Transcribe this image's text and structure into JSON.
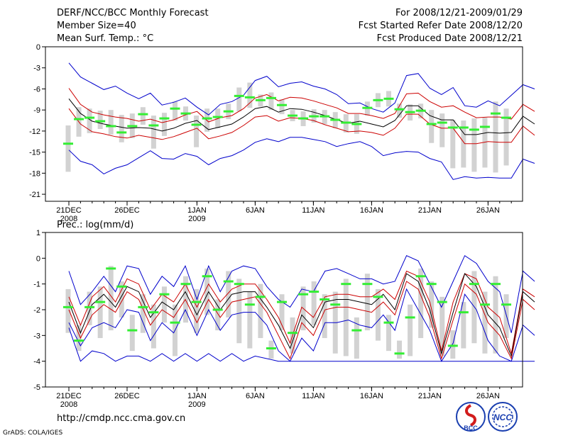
{
  "header": {
    "title": "DERF/NCC/BCC Monthly Forecast",
    "member_size": "Member Size=40",
    "variable": "Mean Surf. Temp.: °C",
    "for_period": "For 2008/12/21-2009/01/29",
    "started": "Fcst Started Refer Date 2008/12/20",
    "produced": "Fcst Produced Date 2008/12/21"
  },
  "footer": {
    "url": "http://cmdp.ncc.cma.gov.cn",
    "grads": "GrADS: COLA/IGES",
    "logo_bcc": "BCC",
    "logo_ncc": "NCC"
  },
  "colors": {
    "envelope": "#0000cc",
    "spread": "#cc0000",
    "mean": "#000000",
    "box": "#d2d2d2",
    "marker": "#33ee33"
  },
  "chart_data": [
    {
      "type": "box-and-line",
      "title": "Mean Surf. Temp.: °C",
      "ylim": [
        0,
        -22
      ],
      "yticks": [
        0,
        -3,
        -6,
        -9,
        -12,
        -15,
        -18,
        -21
      ],
      "day_count": 40,
      "xtick_labels": [
        {
          "day": 0,
          "label": "21DEC",
          "sub": "2008"
        },
        {
          "day": 5,
          "label": "26DEC",
          "sub": ""
        },
        {
          "day": 11,
          "label": "1JAN",
          "sub": "2009"
        },
        {
          "day": 16,
          "label": "6JAN",
          "sub": ""
        },
        {
          "day": 21,
          "label": "11JAN",
          "sub": ""
        },
        {
          "day": 26,
          "label": "16JAN",
          "sub": ""
        },
        {
          "day": 31,
          "label": "21JAN",
          "sub": ""
        },
        {
          "day": 36,
          "label": "26JAN",
          "sub": ""
        }
      ],
      "series": [
        {
          "name": "max",
          "values": [
            -2.3,
            -4.3,
            -5.2,
            -6.1,
            -5.6,
            -6.6,
            -7.4,
            -6.6,
            -8.3,
            -7.9,
            -7.3,
            -8.6,
            -9.7,
            -8.2,
            -7.8,
            -6.9,
            -4.8,
            -4.2,
            -5.7,
            -5.2,
            -5.0,
            -5.6,
            -6.0,
            -6.8,
            -8.1,
            -8.0,
            -8.8,
            -9.3,
            -8.0,
            -4.1,
            -3.8,
            -5.9,
            -6.8,
            -5.8,
            -8.4,
            -8.6,
            -7.7,
            -8.4,
            -6.9,
            -5.4,
            -6.0
          ]
        },
        {
          "name": "upper",
          "values": [
            -5.9,
            -8.2,
            -9.3,
            -9.7,
            -10.0,
            -10.2,
            -10.6,
            -10.3,
            -10.8,
            -10.4,
            -9.7,
            -9.2,
            -10.7,
            -10.1,
            -9.8,
            -8.8,
            -7.3,
            -6.8,
            -7.7,
            -7.2,
            -7.3,
            -7.7,
            -8.2,
            -8.7,
            -9.5,
            -9.5,
            -9.8,
            -10.2,
            -9.5,
            -6.7,
            -6.6,
            -7.8,
            -8.6,
            -8.4,
            -9.3,
            -10.1,
            -10.0,
            -10.0,
            -10.3,
            -8.2,
            -9.2
          ]
        },
        {
          "name": "mean",
          "values": [
            -7.4,
            -9.5,
            -10.6,
            -11.0,
            -11.3,
            -11.6,
            -11.5,
            -11.6,
            -12.0,
            -11.6,
            -10.9,
            -10.5,
            -11.8,
            -11.4,
            -11.0,
            -10.0,
            -8.8,
            -8.5,
            -9.3,
            -8.8,
            -8.9,
            -9.3,
            -9.8,
            -10.4,
            -10.9,
            -10.6,
            -11.0,
            -11.4,
            -10.5,
            -8.4,
            -8.4,
            -9.8,
            -10.4,
            -10.4,
            -12.5,
            -12.5,
            -12.2,
            -12.3,
            -12.2,
            -9.9,
            -11.0
          ]
        },
        {
          "name": "lower",
          "values": [
            -8.8,
            -11.0,
            -12.1,
            -12.4,
            -12.8,
            -13.0,
            -12.6,
            -12.9,
            -13.2,
            -12.8,
            -12.2,
            -11.6,
            -13.1,
            -12.7,
            -12.2,
            -11.2,
            -10.0,
            -9.8,
            -10.6,
            -10.1,
            -10.2,
            -10.5,
            -11.1,
            -11.6,
            -12.1,
            -12.0,
            -12.2,
            -12.6,
            -11.6,
            -9.6,
            -9.6,
            -11.0,
            -11.6,
            -11.6,
            -13.8,
            -13.8,
            -13.5,
            -13.6,
            -13.6,
            -11.3,
            -12.6
          ]
        },
        {
          "name": "min",
          "values": [
            -14.7,
            -16.3,
            -16.8,
            -18.1,
            -17.3,
            -16.8,
            -15.8,
            -14.8,
            -15.9,
            -16.0,
            -15.2,
            -15.6,
            -16.8,
            -15.9,
            -15.5,
            -14.7,
            -13.6,
            -13.1,
            -13.5,
            -12.9,
            -12.9,
            -13.2,
            -13.5,
            -14.2,
            -13.8,
            -13.5,
            -14.2,
            -15.5,
            -15.1,
            -14.9,
            -15.0,
            -15.9,
            -16.4,
            -18.9,
            -18.5,
            -18.7,
            -18.6,
            -18.7,
            -18.7,
            -16.0,
            -16.6
          ]
        }
      ],
      "markers": [
        -13.8,
        -10.3,
        -10.1,
        -10.6,
        -11.3,
        -12.2,
        -11.3,
        -9.6,
        -11.2,
        -10.2,
        -8.8,
        -9.5,
        -11.1,
        -10.2,
        -10.0,
        -9.2,
        -7.0,
        -7.2,
        -7.6,
        -7.3,
        -8.3,
        -9.8,
        -10.2,
        -9.9,
        -9.9,
        -10.4,
        -10.8,
        -11.0,
        -8.7,
        -7.6,
        -7.4,
        -8.9,
        -9.3,
        -9.1,
        -11.0,
        -10.8,
        -11.5,
        -11.5,
        -11.8,
        -11.4,
        -9.5,
        -10.1
      ],
      "boxes": [
        [
          -11.2,
          -17.8
        ],
        [
          -8.6,
          -12.8
        ],
        [
          -8.8,
          -12.3
        ],
        [
          -9.1,
          -11.7
        ],
        [
          -9.0,
          -12.5
        ],
        [
          -9.7,
          -13.6
        ],
        [
          -9.5,
          -13.0
        ],
        [
          -8.6,
          -11.1
        ],
        [
          -9.8,
          -14.5
        ],
        [
          -9.4,
          -12.7
        ],
        [
          -7.8,
          -10.5
        ],
        [
          -8.5,
          -10.5
        ],
        [
          -9.8,
          -14.3
        ],
        [
          -8.8,
          -12.1
        ],
        [
          -8.8,
          -11.6
        ],
        [
          -8.1,
          -10.3
        ],
        [
          -5.8,
          -9.2
        ],
        [
          -5.1,
          -8.7
        ],
        [
          -6.8,
          -8.5
        ],
        [
          -6.5,
          -9.0
        ],
        [
          -7.5,
          -9.6
        ],
        [
          -9.0,
          -10.6
        ],
        [
          -9.2,
          -11.3
        ],
        [
          -8.9,
          -10.8
        ],
        [
          -9.0,
          -11.0
        ],
        [
          -9.3,
          -11.6
        ],
        [
          -9.6,
          -12.2
        ],
        [
          -9.6,
          -12.4
        ],
        [
          -7.8,
          -9.8
        ],
        [
          -6.6,
          -8.6
        ],
        [
          -6.3,
          -8.5
        ],
        [
          -8.1,
          -10.1
        ],
        [
          -8.2,
          -10.5
        ],
        [
          -8.1,
          -10.2
        ],
        [
          -9.0,
          -13.7
        ],
        [
          -9.5,
          -14.3
        ],
        [
          -10.4,
          -17.3
        ],
        [
          -10.5,
          -17.2
        ],
        [
          -10.2,
          -17.8
        ],
        [
          -10.1,
          -17.2
        ],
        [
          -7.8,
          -17.9
        ],
        [
          -8.8,
          -16.9
        ]
      ]
    },
    {
      "type": "box-and-line",
      "title": "Prec.: log(mm/d)",
      "ylim": [
        1,
        -5
      ],
      "yticks": [
        1,
        0,
        -1,
        -2,
        -3,
        -4,
        -5
      ],
      "day_count": 40,
      "xtick_labels": [
        {
          "day": 0,
          "label": "21DEC",
          "sub": "2008"
        },
        {
          "day": 5,
          "label": "26DEC",
          "sub": ""
        },
        {
          "day": 11,
          "label": "1JAN",
          "sub": "2009"
        },
        {
          "day": 16,
          "label": "6JAN",
          "sub": ""
        },
        {
          "day": 21,
          "label": "11JAN",
          "sub": ""
        },
        {
          "day": 26,
          "label": "16JAN",
          "sub": ""
        },
        {
          "day": 31,
          "label": "21JAN",
          "sub": ""
        },
        {
          "day": 36,
          "label": "26JAN",
          "sub": ""
        }
      ],
      "series": [
        {
          "name": "max",
          "values": [
            -0.5,
            -1.8,
            -1.3,
            -0.7,
            -1.3,
            -0.3,
            -0.4,
            -1.4,
            -0.7,
            -1.1,
            -0.3,
            -1.6,
            -0.3,
            -1.3,
            -0.5,
            -0.3,
            -0.4,
            -1.1,
            -1.6,
            -1.9,
            -1.2,
            -1.3,
            -0.5,
            -0.4,
            -0.6,
            -0.8,
            -0.8,
            -1.0,
            -0.9,
            0.1,
            -0.1,
            -1.0,
            -1.9,
            -0.9,
            0.1,
            -0.2,
            -0.9,
            -1.3,
            -2.9,
            -0.5,
            -0.9
          ]
        },
        {
          "name": "upper",
          "values": [
            -1.5,
            -2.6,
            -1.5,
            -1.1,
            -1.7,
            -0.8,
            -1.0,
            -2.0,
            -1.4,
            -1.7,
            -1.0,
            -1.9,
            -1.0,
            -1.7,
            -1.2,
            -1.0,
            -1.0,
            -1.6,
            -2.3,
            -3.3,
            -1.9,
            -2.3,
            -1.5,
            -1.4,
            -1.4,
            -1.5,
            -1.5,
            -1.2,
            -1.6,
            -0.5,
            -0.7,
            -1.7,
            -3.6,
            -1.7,
            -0.6,
            -0.8,
            -1.9,
            -2.3,
            -3.7,
            -1.2,
            -1.5
          ]
        },
        {
          "name": "mean",
          "values": [
            -1.7,
            -2.9,
            -1.8,
            -1.4,
            -1.9,
            -1.1,
            -1.3,
            -2.3,
            -1.7,
            -2.0,
            -1.3,
            -2.2,
            -1.3,
            -2.0,
            -1.4,
            -1.3,
            -1.3,
            -1.9,
            -2.6,
            -3.5,
            -2.2,
            -2.7,
            -1.7,
            -1.6,
            -1.6,
            -1.7,
            -1.8,
            -1.4,
            -2.0,
            -0.6,
            -0.9,
            -2.0,
            -3.7,
            -2.1,
            -0.6,
            -1.1,
            -2.2,
            -2.7,
            -3.8,
            -1.3,
            -1.7
          ]
        },
        {
          "name": "lower",
          "values": [
            -2.0,
            -3.1,
            -2.2,
            -1.8,
            -2.1,
            -1.3,
            -1.6,
            -2.6,
            -2.0,
            -2.3,
            -1.6,
            -2.5,
            -1.6,
            -2.3,
            -1.7,
            -1.6,
            -1.5,
            -2.1,
            -3.0,
            -3.9,
            -2.5,
            -3.0,
            -2.0,
            -1.9,
            -1.9,
            -2.0,
            -2.1,
            -1.7,
            -2.2,
            -0.9,
            -1.2,
            -2.3,
            -3.9,
            -2.4,
            -1.0,
            -1.4,
            -2.5,
            -3.0,
            -3.9,
            -1.6,
            -2.0
          ]
        },
        {
          "name": "min",
          "values": [
            -2.5,
            -3.4,
            -2.7,
            -2.5,
            -2.7,
            -2.0,
            -2.1,
            -3.2,
            -2.5,
            -2.9,
            -2.0,
            -3.0,
            -2.0,
            -2.8,
            -2.2,
            -2.1,
            -2.1,
            -2.6,
            -3.6,
            -4.0,
            -3.1,
            -3.6,
            -2.5,
            -2.5,
            -2.4,
            -2.6,
            -2.7,
            -2.2,
            -2.8,
            -1.2,
            -2.0,
            -2.8,
            -4.0,
            -3.3,
            -1.4,
            -2.0,
            -3.2,
            -3.8,
            -4.0,
            -2.6,
            -3.0
          ]
        },
        {
          "name": "floor",
          "values": [
            -2.7,
            -4.0,
            -3.6,
            -3.7,
            -4.0,
            -3.8,
            -3.8,
            -4.0,
            -3.7,
            -4.0,
            -3.7,
            -4.0,
            -3.7,
            -4.0,
            -3.7,
            -4.0,
            -3.8,
            -3.9,
            -4.0,
            -4.0,
            -4.0,
            -4.0,
            -4.0,
            -4.0,
            -4.0,
            -4.0,
            -4.0,
            -4.0,
            -4.0,
            -4.0,
            -4.0,
            -4.0,
            -4.0,
            -4.0,
            -4.0,
            -4.0,
            -4.0,
            -4.0,
            -4.0,
            -4.0,
            -4.0
          ]
        }
      ],
      "markers": [
        -1.9,
        -3.2,
        -1.9,
        -1.7,
        -0.4,
        -1.1,
        -2.8,
        -1.9,
        -2.1,
        -1.4,
        -2.5,
        -1.0,
        -1.7,
        -0.7,
        -2.0,
        -0.9,
        -1.0,
        -1.8,
        -1.5,
        -3.5,
        -1.7,
        -2.9,
        -1.4,
        -1.3,
        -1.6,
        -1.8,
        -1.0,
        -2.8,
        -1.0,
        -1.5,
        -2.5,
        -3.7,
        -2.3,
        -0.7,
        -1.0,
        -1.7,
        -3.4,
        -2.1,
        -1.0,
        -1.8,
        -1.0,
        -1.8
      ],
      "boxes": [
        [
          -1.2,
          -2.9
        ],
        [
          -2.6,
          -3.6
        ],
        [
          -1.3,
          -2.6
        ],
        [
          -1.1,
          -3.1
        ],
        [
          -0.3,
          -2.8
        ],
        [
          -0.9,
          -2.3
        ],
        [
          -2.2,
          -3.6
        ],
        [
          -1.4,
          -2.9
        ],
        [
          -1.8,
          -3.5
        ],
        [
          -1.1,
          -2.5
        ],
        [
          -1.8,
          -3.8
        ],
        [
          -0.7,
          -2.5
        ],
        [
          -1.2,
          -2.9
        ],
        [
          -0.4,
          -2.2
        ],
        [
          -1.6,
          -2.8
        ],
        [
          -0.5,
          -2.3
        ],
        [
          -0.8,
          -3.3
        ],
        [
          -1.3,
          -3.5
        ],
        [
          -1.0,
          -3.1
        ],
        [
          -3.2,
          -3.9
        ],
        [
          -1.4,
          -2.8
        ],
        [
          -2.3,
          -3.7
        ],
        [
          -1.1,
          -2.8
        ],
        [
          -0.9,
          -2.6
        ],
        [
          -1.4,
          -3.1
        ],
        [
          -1.3,
          -3.7
        ],
        [
          -0.8,
          -3.8
        ],
        [
          -2.3,
          -3.9
        ],
        [
          -0.6,
          -2.8
        ],
        [
          -1.2,
          -3.2
        ],
        [
          -2.2,
          -3.6
        ],
        [
          -3.2,
          -3.9
        ],
        [
          -1.8,
          -3.8
        ],
        [
          -0.4,
          -3.1
        ],
        [
          -0.9,
          -2.7
        ],
        [
          -1.5,
          -3.8
        ],
        [
          -2.8,
          -3.9
        ],
        [
          -1.7,
          -3.5
        ],
        [
          -0.5,
          -3.3
        ],
        [
          -1.3,
          -3.7
        ],
        [
          -0.7,
          -3.7
        ],
        [
          -1.4,
          -3.1
        ]
      ]
    }
  ]
}
